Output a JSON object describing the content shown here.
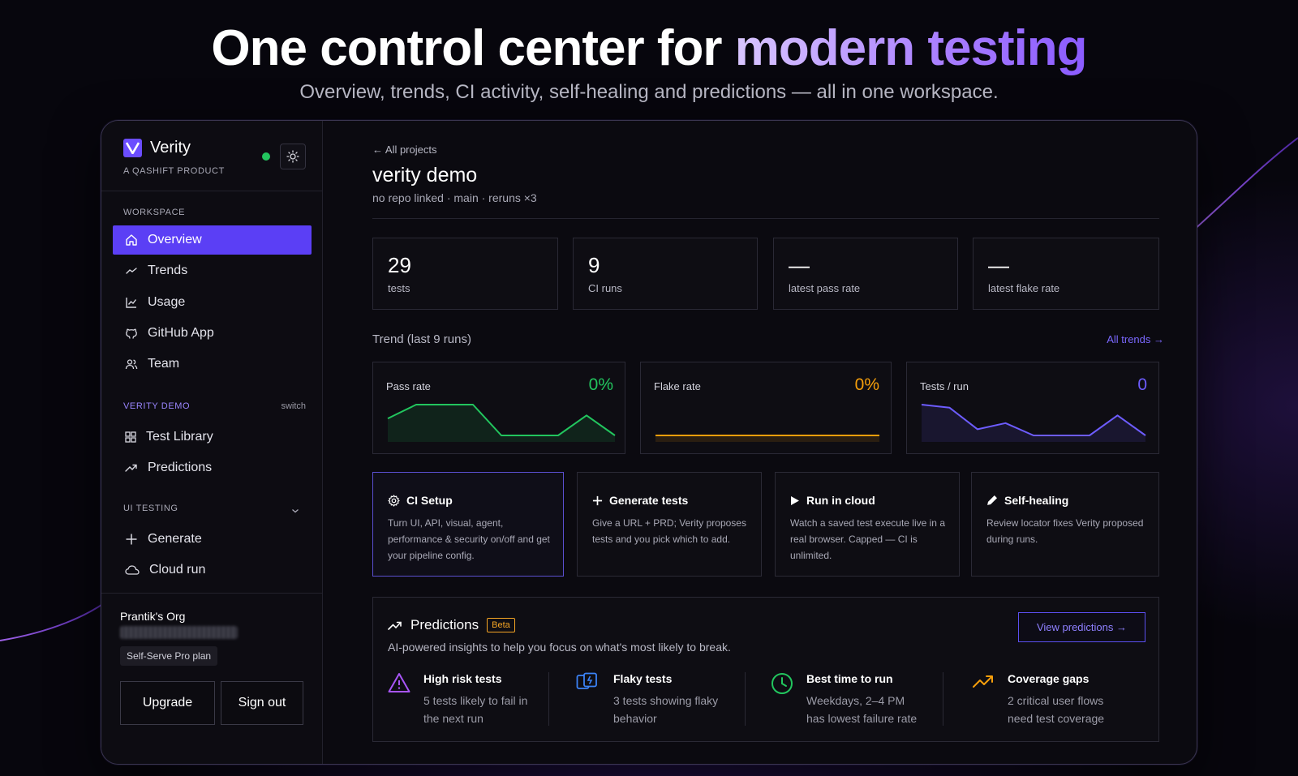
{
  "hero": {
    "title_main": "One control center for ",
    "title_accent": "modern testing",
    "subtitle": "Overview, trends, CI activity, self-healing and predictions — all in one workspace."
  },
  "sidebar": {
    "brand": "Verity",
    "tagline": "A QASHIFT PRODUCT",
    "workspace_label": "WORKSPACE",
    "workspace_items": [
      {
        "label": "Overview",
        "icon": "home-icon",
        "active": true
      },
      {
        "label": "Trends",
        "icon": "trend-line-icon"
      },
      {
        "label": "Usage",
        "icon": "chart-icon"
      },
      {
        "label": "GitHub App",
        "icon": "github-icon"
      },
      {
        "label": "Team",
        "icon": "team-icon"
      }
    ],
    "project_label": "VERITY DEMO",
    "project_switch": "switch",
    "project_items": [
      {
        "label": "Test Library",
        "icon": "grid-icon"
      },
      {
        "label": "Predictions",
        "icon": "trending-up-icon"
      }
    ],
    "ui_testing_label": "UI TESTING",
    "ui_testing_items": [
      {
        "label": "Generate",
        "icon": "plus-icon"
      },
      {
        "label": "Cloud run",
        "icon": "cloud-icon"
      }
    ],
    "org_name": "Prantik's Org",
    "plan": "Self-Serve Pro plan",
    "upgrade_label": "Upgrade",
    "signout_label": "Sign out"
  },
  "main": {
    "back_link": "← All projects",
    "project_title": "verity demo",
    "project_meta": "no repo linked · main · reruns ×3",
    "stats": [
      {
        "value": "29",
        "label": "tests"
      },
      {
        "value": "9",
        "label": "CI runs"
      },
      {
        "value": "—",
        "label": "latest pass rate"
      },
      {
        "value": "—",
        "label": "latest flake rate"
      }
    ],
    "trend_label": "Trend (last 9 runs)",
    "trend_link": "All trends →",
    "trends": [
      {
        "name": "Pass rate",
        "value": "0%",
        "color": "#22c55e",
        "points": [
          0.55,
          1,
          1,
          1,
          0.0,
          0.0,
          0.0,
          0.65,
          0.0
        ]
      },
      {
        "name": "Flake rate",
        "value": "0%",
        "color": "#f59e0b",
        "points": [
          0,
          0,
          0,
          0,
          0,
          0,
          0,
          0,
          0
        ]
      },
      {
        "name": "Tests / run",
        "value": "0",
        "color": "#6d5cff",
        "points": [
          1,
          0.9,
          0.2,
          0.4,
          0.0,
          0.0,
          0.0,
          0.65,
          0.0
        ]
      }
    ],
    "actions": [
      {
        "title": "CI Setup",
        "icon": "gear-icon",
        "desc": "Turn UI, API, visual, agent, performance & security on/off and get your pipeline config."
      },
      {
        "title": "Generate tests",
        "icon": "plus-icon",
        "desc": "Give a URL + PRD; Verity proposes tests and you pick which to add."
      },
      {
        "title": "Run in cloud",
        "icon": "play-icon",
        "desc": "Watch a saved test execute live in a real browser. Capped — CI is unlimited."
      },
      {
        "title": "Self-healing",
        "icon": "pencil-icon",
        "desc": "Review locator fixes Verity proposed during runs."
      }
    ],
    "predictions": {
      "title": "Predictions",
      "badge": "Beta",
      "subtitle": "AI-powered insights to help you focus on what's most likely to break.",
      "button": "View predictions →",
      "items": [
        {
          "title": "High risk tests",
          "desc1": "5 tests likely to fail in",
          "desc2": "the next run",
          "icon": "warning-icon",
          "color": "#a855f7"
        },
        {
          "title": "Flaky tests",
          "desc1": "3 tests showing flaky",
          "desc2": "behavior",
          "icon": "flaky-icon",
          "color": "#3b82f6"
        },
        {
          "title": "Best time to run",
          "desc1": "Weekdays, 2–4 PM",
          "desc2": "has lowest failure rate",
          "icon": "clock-icon",
          "color": "#22c55e"
        },
        {
          "title": "Coverage gaps",
          "desc1": "2 critical user flows",
          "desc2": "need test coverage",
          "icon": "trending-up-icon",
          "color": "#f59e0b"
        }
      ]
    }
  }
}
